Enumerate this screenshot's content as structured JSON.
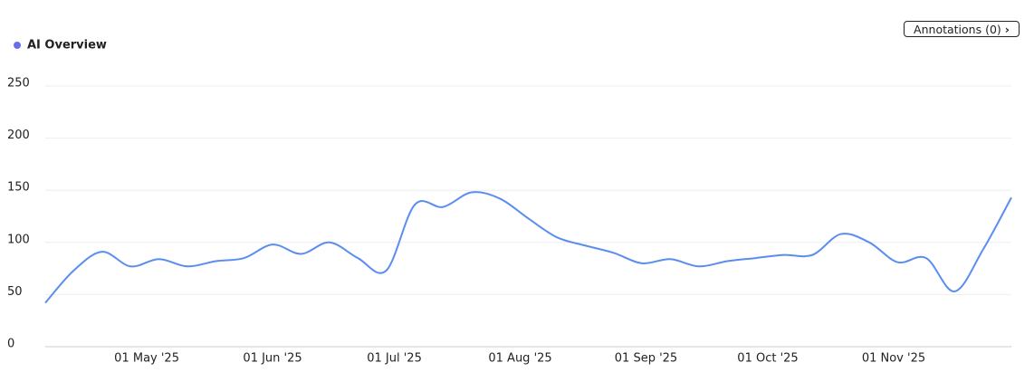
{
  "annotations_button": "Annotations (0)",
  "chart_data": {
    "type": "line",
    "x": [
      "2025-04-06",
      "2025-04-13",
      "2025-04-20",
      "2025-04-27",
      "2025-05-04",
      "2025-05-11",
      "2025-05-18",
      "2025-05-25",
      "2025-06-01",
      "2025-06-08",
      "2025-06-15",
      "2025-06-22",
      "2025-06-29",
      "2025-07-06",
      "2025-07-13",
      "2025-07-20",
      "2025-07-27",
      "2025-08-03",
      "2025-08-10",
      "2025-08-17",
      "2025-08-24",
      "2025-08-31",
      "2025-09-07",
      "2025-09-14",
      "2025-09-21",
      "2025-09-28",
      "2025-10-05",
      "2025-10-12",
      "2025-10-19",
      "2025-10-26",
      "2025-11-02",
      "2025-11-09",
      "2025-11-16",
      "2025-11-23",
      "2025-11-30"
    ],
    "series": [
      {
        "name": "AI Overview",
        "color": "#5b8def",
        "legend_color": "#6b6bef",
        "values": [
          42,
          73,
          91,
          77,
          84,
          77,
          82,
          85,
          98,
          89,
          100,
          85,
          73,
          136,
          134,
          148,
          142,
          123,
          105,
          97,
          90,
          80,
          84,
          77,
          82,
          85,
          88,
          88,
          108,
          100,
          81,
          85,
          53,
          93,
          143
        ]
      }
    ],
    "xlim": [
      "2025-04-06",
      "2025-11-30"
    ],
    "xticks": [
      {
        "value": "2025-05-01",
        "label": "01 May '25"
      },
      {
        "value": "2025-06-01",
        "label": "01 Jun '25"
      },
      {
        "value": "2025-07-01",
        "label": "01 Jul '25"
      },
      {
        "value": "2025-08-01",
        "label": "01 Aug '25"
      },
      {
        "value": "2025-09-01",
        "label": "01 Sep '25"
      },
      {
        "value": "2025-10-01",
        "label": "01 Oct '25"
      },
      {
        "value": "2025-11-01",
        "label": "01 Nov '25"
      }
    ],
    "ylim": [
      0,
      250
    ],
    "yticks": [
      0,
      50,
      100,
      150,
      200,
      250
    ],
    "grid": true,
    "legend": "top-left"
  }
}
